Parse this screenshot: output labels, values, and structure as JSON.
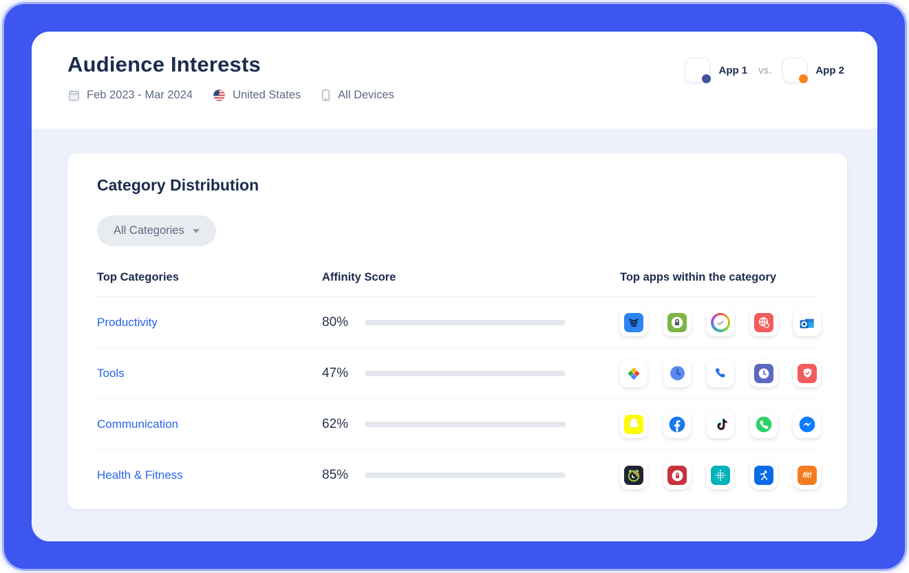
{
  "header": {
    "title": "Audience Interests",
    "date_range": "Feb 2023 - Mar 2024",
    "country": "United States",
    "devices": "All Devices",
    "compare": {
      "app1_label": "App 1",
      "vs_label": "vs.",
      "app2_label": "App 2",
      "app1_dot_color": "#44549c",
      "app2_dot_color": "#f8861c"
    }
  },
  "card": {
    "title": "Category Distribution",
    "filter_label": "All Categories",
    "columns": [
      "Top Categories",
      "Affinity Score",
      "Top apps within the category"
    ],
    "rows": [
      {
        "category": "Productivity",
        "score_label": "80%",
        "score_pct": 80,
        "apps": [
          "layers-blue-app",
          "app-lock-green",
          "progress-ring-check",
          "private-globe-red",
          "outlook"
        ]
      },
      {
        "category": "Tools",
        "score_label": "47%",
        "score_pct": 47,
        "apps": [
          "google-play-services",
          "google-clock",
          "google-phone",
          "clock-indigo",
          "shield-red"
        ]
      },
      {
        "category": "Communication",
        "score_label": "62%",
        "score_pct": 62,
        "apps": [
          "snapchat",
          "facebook",
          "tiktok",
          "whatsapp",
          "messenger"
        ]
      },
      {
        "category": "Health & Fitness",
        "score_label": "85%",
        "score_pct": 85,
        "apps": [
          "sleep-tracker-dark",
          "privacy-lock-red",
          "fitbit",
          "myfitnesspal",
          "fit-orange"
        ]
      }
    ]
  },
  "colors": {
    "frame_blue": "#3d56f0",
    "section_bg": "#edf1fb",
    "accent_blue": "#2563eb",
    "bar_track": "#e4e7ed",
    "title_navy": "#1c2b4e",
    "meta_gray": "#5d6b82"
  }
}
